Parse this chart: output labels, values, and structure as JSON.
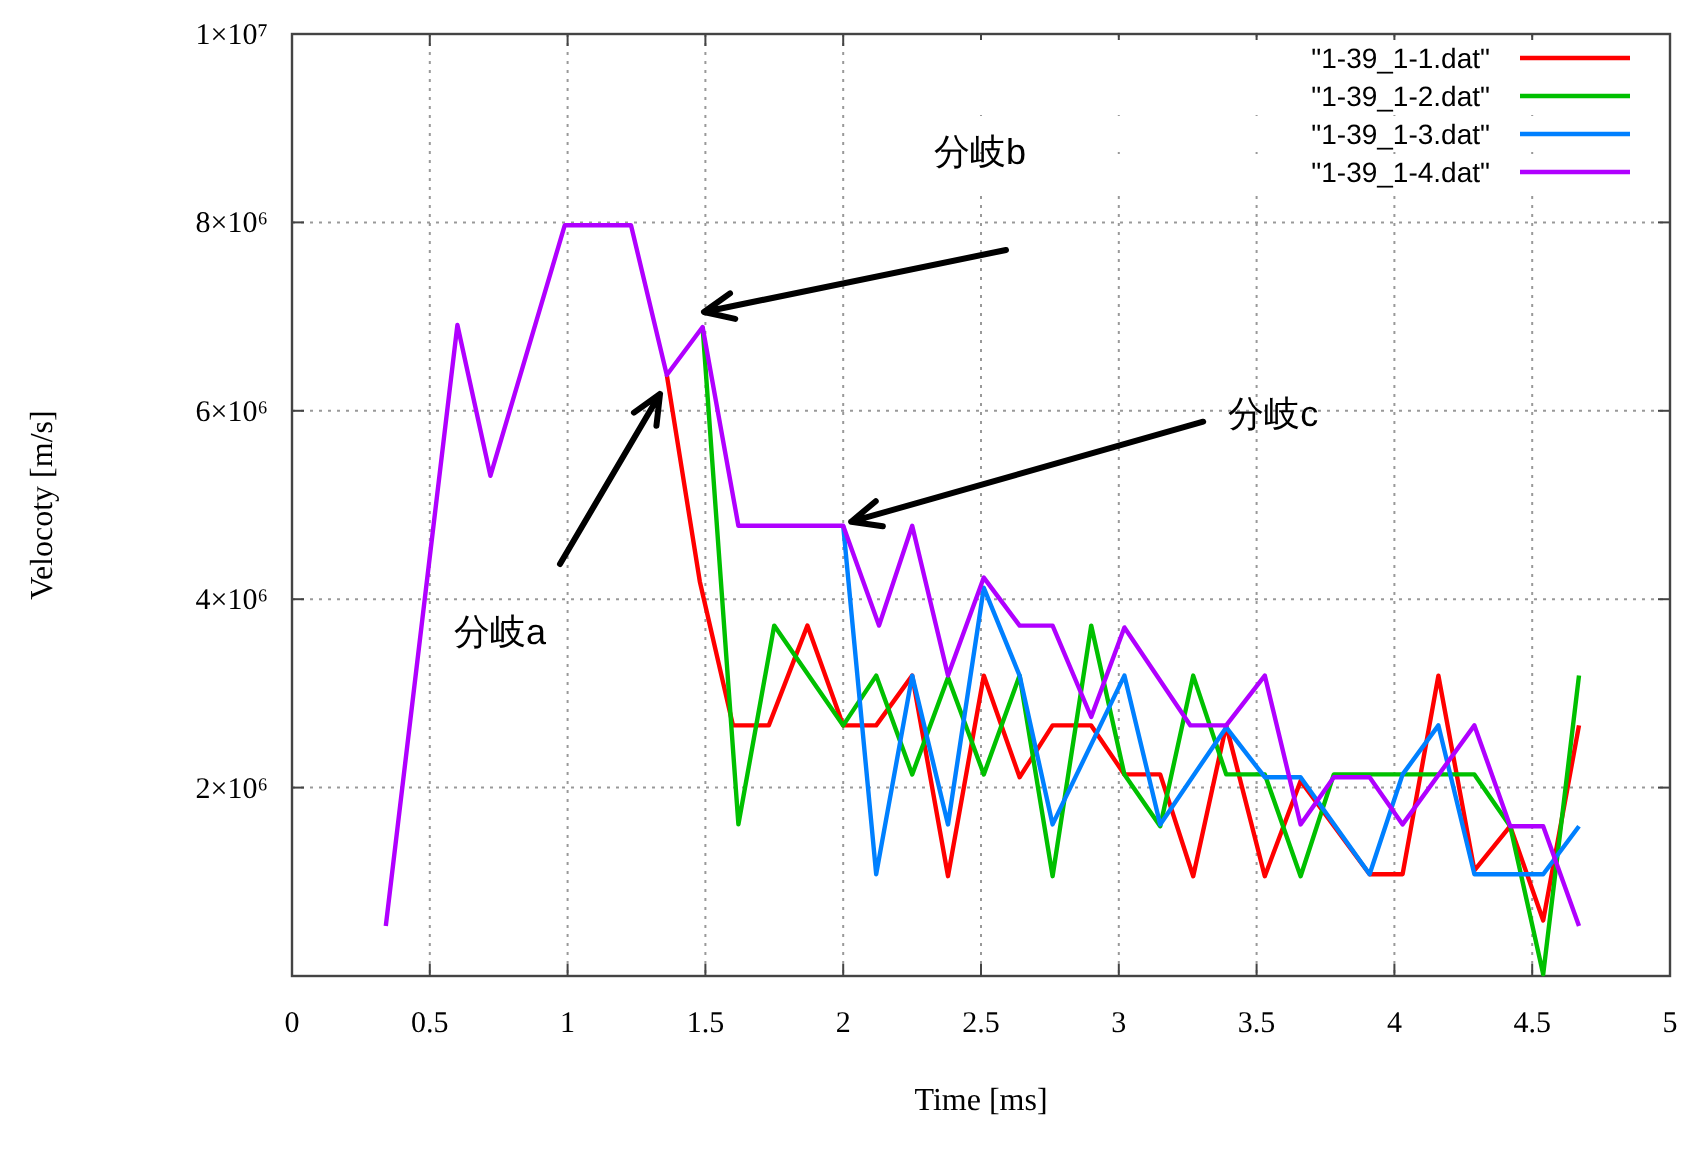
{
  "chart_data": {
    "type": "line",
    "xlabel": "Time [ms]",
    "ylabel": "Velocoty [m/s]",
    "xlim": [
      0,
      5
    ],
    "ylim": [
      0,
      10000000
    ],
    "xticks": [
      0,
      0.5,
      1,
      1.5,
      2,
      2.5,
      3,
      3.5,
      4,
      4.5,
      5
    ],
    "yticks": [
      {
        "value": 2000000,
        "label": "2×10⁶"
      },
      {
        "value": 4000000,
        "label": "4×10⁶"
      },
      {
        "value": 6000000,
        "label": "6×10⁶"
      },
      {
        "value": 8000000,
        "label": "8×10⁶"
      },
      {
        "value": 10000000,
        "label": "1×10⁷"
      }
    ],
    "grid": true,
    "legend": "top right",
    "line_style": "solid",
    "series": [
      {
        "name": "\"1-39_1-1.dat\"",
        "color": "#ff0000",
        "x": [
          1.36,
          1.48,
          1.6,
          1.73,
          1.87,
          2.0,
          2.12,
          2.25,
          2.38,
          2.51,
          2.64,
          2.76,
          2.9,
          3.02,
          3.15,
          3.27,
          3.39,
          3.53,
          3.66,
          3.91,
          4.03,
          4.16,
          4.29,
          4.42,
          4.54,
          4.67
        ],
        "values": [
          6380000,
          4190000,
          2660000,
          2660000,
          3720000,
          2660000,
          2660000,
          3190000,
          1060000,
          3190000,
          2110000,
          2660000,
          2660000,
          2140000,
          2140000,
          1060000,
          2660000,
          1060000,
          2070000,
          1080000,
          1080000,
          3190000,
          1120000,
          1590000,
          590000,
          2660000
        ]
      },
      {
        "name": "\"1-39_1-2.dat\"",
        "color": "#00c000",
        "x": [
          1.49,
          1.62,
          1.75,
          2.0,
          2.12,
          2.25,
          2.38,
          2.51,
          2.64,
          2.76,
          2.9,
          3.02,
          3.15,
          3.27,
          3.39,
          3.53,
          3.66,
          3.78,
          4.17,
          4.29,
          4.42,
          4.54,
          4.67
        ],
        "values": [
          6890000,
          1610000,
          3720000,
          2660000,
          3190000,
          2140000,
          3170000,
          2140000,
          3190000,
          1060000,
          3720000,
          2140000,
          1590000,
          3190000,
          2140000,
          2140000,
          1060000,
          2140000,
          2140000,
          2140000,
          1590000,
          20000,
          3190000
        ]
      },
      {
        "name": "\"1-39_1-3.dat\"",
        "color": "#0080ff",
        "x": [
          2.0,
          2.12,
          2.25,
          2.38,
          2.51,
          2.64,
          2.76,
          3.02,
          3.15,
          3.39,
          3.53,
          3.66,
          3.91,
          4.03,
          4.16,
          4.29,
          4.54,
          4.67
        ],
        "values": [
          4780000,
          1080000,
          3190000,
          1610000,
          4120000,
          3190000,
          1610000,
          3190000,
          1610000,
          2640000,
          2110000,
          2110000,
          1080000,
          2140000,
          2660000,
          1080000,
          1080000,
          1590000
        ]
      },
      {
        "name": "\"1-39_1-4.dat\"",
        "color": "#b000ff",
        "x": [
          0.34,
          0.6,
          0.72,
          0.99,
          1.23,
          1.36,
          1.49,
          1.62,
          2.0,
          2.13,
          2.25,
          2.38,
          2.51,
          2.64,
          2.76,
          2.9,
          3.02,
          3.26,
          3.39,
          3.53,
          3.66,
          3.78,
          3.91,
          4.03,
          4.29,
          4.42,
          4.54,
          4.67
        ],
        "values": [
          530000,
          6910000,
          5310000,
          7970000,
          7970000,
          6380000,
          6890000,
          4780000,
          4780000,
          3720000,
          4780000,
          3190000,
          4230000,
          3720000,
          3720000,
          2750000,
          3700000,
          2660000,
          2660000,
          3190000,
          1610000,
          2110000,
          2110000,
          1610000,
          2660000,
          1590000,
          1590000,
          530000
        ]
      }
    ],
    "annotations": [
      "分岐a",
      "分岐b",
      {
        "text": "分岐c",
        "x": 2.0,
        "y": 4780000
      }
    ]
  }
}
